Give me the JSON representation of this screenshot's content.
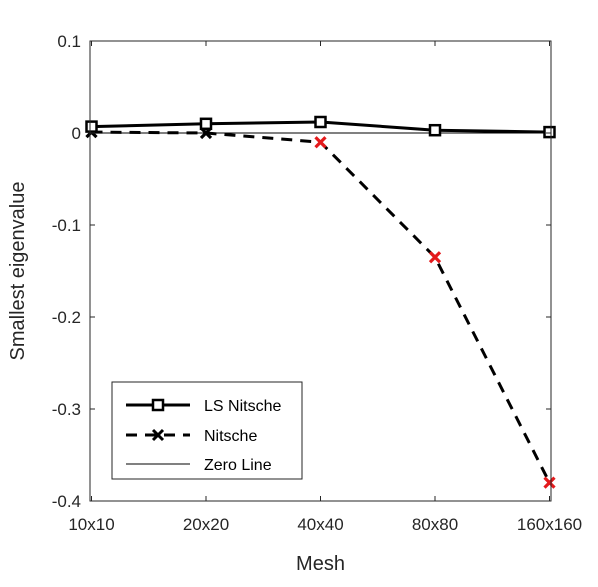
{
  "chart_data": {
    "type": "line",
    "categories": [
      "10x10",
      "20x20",
      "40x40",
      "80x80",
      "160x160"
    ],
    "xlabel": "Mesh",
    "ylabel": "Smallest eigenvalue",
    "ylim": [
      -0.4,
      0.1
    ],
    "yticks": [
      {
        "value": 0.1,
        "label": "0.1"
      },
      {
        "value": 0,
        "label": "0"
      },
      {
        "value": -0.1,
        "label": "-0.1"
      },
      {
        "value": -0.2,
        "label": "-0.2"
      },
      {
        "value": -0.3,
        "label": "-0.3"
      },
      {
        "value": -0.4,
        "label": "-0.4"
      }
    ],
    "grid": false,
    "legend_position": "bottom-left",
    "series": [
      {
        "name": "LS Nitsche",
        "values": [
          0.007,
          0.01,
          0.012,
          0.003,
          0.001
        ],
        "line_style": "solid",
        "marker": "square",
        "color": "#000000"
      },
      {
        "name": "Nitsche",
        "values": [
          0.001,
          0.0,
          -0.01,
          -0.135,
          -0.38
        ],
        "line_style": "dashed",
        "marker": "x",
        "color": "#000000",
        "highlight_marker_color": "#e41a1c",
        "highlighted_indices": [
          2,
          3,
          4
        ]
      },
      {
        "name": "Zero Line",
        "values": [
          0,
          0,
          0,
          0,
          0
        ],
        "line_style": "thin",
        "marker": "none",
        "color": "#000000"
      }
    ]
  }
}
